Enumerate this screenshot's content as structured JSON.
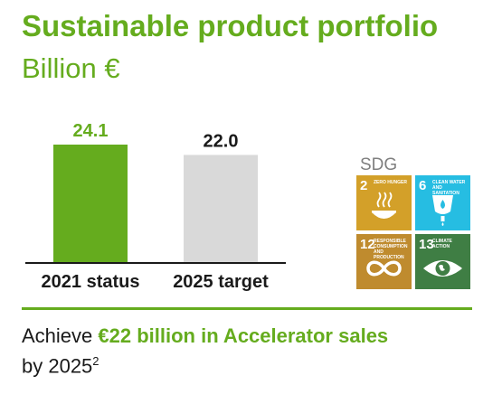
{
  "header": {
    "title": "Sustainable product portfolio",
    "unit": "Billion €"
  },
  "chart_data": {
    "type": "bar",
    "title": "Sustainable product portfolio",
    "ylabel": "Billion €",
    "categories": [
      "2021 status",
      "2025 target"
    ],
    "values": [
      24.1,
      22.0
    ],
    "value_labels": [
      "24.1",
      "22.0"
    ],
    "ylim": [
      0,
      24.1
    ],
    "colors": [
      "#65ac1e",
      "#d9d9d9"
    ],
    "label_colors": [
      "#65ac1e",
      "#1a1a1a"
    ],
    "grid": false,
    "legend": "none"
  },
  "sdg": {
    "label": "SDG",
    "tiles": [
      {
        "number": "2",
        "text": "Zero hunger",
        "color": "#d3a029",
        "icon": "bowl-icon"
      },
      {
        "number": "6",
        "text": "Clean water and sanitation",
        "color": "#26bde2",
        "icon": "water-drop-icon"
      },
      {
        "number": "12",
        "text": "Responsible consumption and production",
        "color": "#bf8b2e",
        "icon": "infinity-icon"
      },
      {
        "number": "13",
        "text": "Climate action",
        "color": "#3f7e44",
        "icon": "eye-globe-icon"
      }
    ]
  },
  "footer": {
    "prefix": "Achieve ",
    "highlight": "€22 billion in Accelerator sales",
    "suffix": "by 2025",
    "footnote": "2"
  }
}
